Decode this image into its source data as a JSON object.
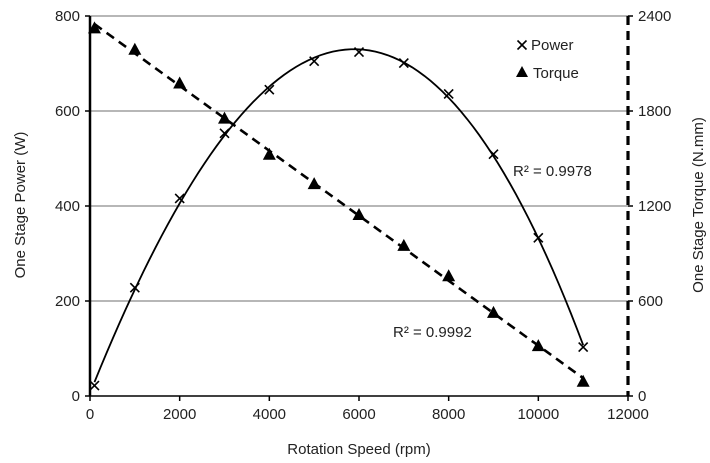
{
  "chart_data": {
    "type": "scatter",
    "title": "",
    "xlabel": "Rotation Speed (rpm)",
    "ylabel_left": "One Stage Power (W)",
    "ylabel_right": "One Stage Torque (N.mm)",
    "xlim": [
      0,
      12000
    ],
    "ylim_left": [
      0,
      800
    ],
    "ylim_right": [
      0,
      2400
    ],
    "x_ticks": [
      "0",
      "2000",
      "4000",
      "6000",
      "8000",
      "10000",
      "12000"
    ],
    "y_left_ticks": [
      "0",
      "200",
      "400",
      "600",
      "800"
    ],
    "y_right_ticks": [
      "0",
      "600",
      "1200",
      "1800",
      "2400"
    ],
    "grid": "horizontal",
    "legend_position": "top-right",
    "series": [
      {
        "name": "Power",
        "axis": "left",
        "marker": "x",
        "color": "#000000",
        "x": [
          100,
          1000,
          2000,
          3000,
          4000,
          5000,
          6000,
          7000,
          8000,
          9000,
          10000,
          11000
        ],
        "values": [
          22,
          228,
          416,
          553,
          645,
          705,
          724,
          701,
          636,
          509,
          333,
          103
        ],
        "trendline": "polynomial",
        "r2_label": "R² = 0.9978"
      },
      {
        "name": "Torque",
        "axis": "right",
        "marker": "triangle",
        "color": "#000000",
        "x": [
          100,
          1000,
          2000,
          3000,
          4000,
          5000,
          6000,
          7000,
          8000,
          9000,
          10000,
          11000
        ],
        "values": [
          2322,
          2187,
          1974,
          1752,
          1524,
          1338,
          1143,
          948,
          756,
          525,
          315,
          90
        ],
        "trendline": "linear",
        "r2_label": "R² = 0.9992"
      }
    ]
  }
}
